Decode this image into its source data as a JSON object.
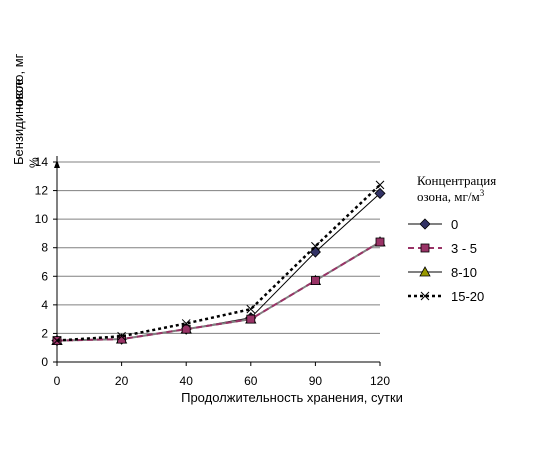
{
  "chart_data": {
    "type": "line",
    "categories": [
      "0",
      "20",
      "40",
      "60",
      "90",
      "120"
    ],
    "xlabel": "Продолжительность хранения, сутки",
    "ylabel_line1": "Бензидиновое",
    "ylabel_line2": "число, мг",
    "ylabel_sub": "%",
    "ylim": [
      0,
      14
    ],
    "yticks": [
      0,
      2,
      4,
      6,
      8,
      10,
      12,
      14
    ],
    "grid": true,
    "legend": {
      "title_line1": "Концентрация",
      "title_line2": "озона, мг/м",
      "title_sup": "3",
      "placement": "right"
    },
    "series": [
      {
        "name": "0",
        "values": [
          1.5,
          1.6,
          2.3,
          3.1,
          7.7,
          11.8
        ],
        "color": "#000000",
        "dash": "",
        "width": 1,
        "marker": "diamond",
        "marker_fill": "#333366"
      },
      {
        "name": "3 - 5",
        "values": [
          1.5,
          1.6,
          2.3,
          3.0,
          5.7,
          8.4
        ],
        "color": "#993366",
        "dash": "6 4",
        "width": 2,
        "marker": "square",
        "marker_fill": "#993366"
      },
      {
        "name": "8-10",
        "values": [
          1.5,
          1.6,
          2.3,
          3.0,
          5.7,
          8.4
        ],
        "color": "#808080",
        "dash": "",
        "width": 2,
        "marker": "triangle",
        "marker_fill": "#999900"
      },
      {
        "name": "15-20",
        "values": [
          1.5,
          1.8,
          2.7,
          3.7,
          8.1,
          12.4
        ],
        "color": "#000000",
        "dash": "3 3",
        "width": 2.5,
        "marker": "x",
        "marker_fill": "#000000"
      }
    ]
  }
}
